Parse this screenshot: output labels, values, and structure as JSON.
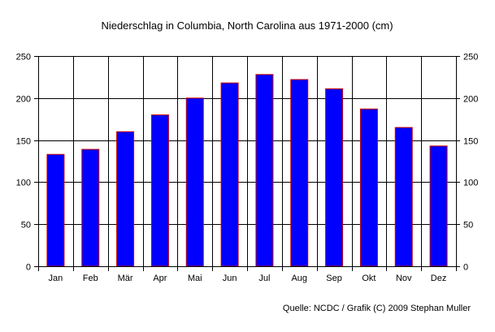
{
  "chart_data": {
    "type": "bar",
    "title": "Niederschlag in Columbia, North Carolina aus 1971-2000 (cm)",
    "categories": [
      "Jan",
      "Feb",
      "Mär",
      "Apr",
      "Mai",
      "Jun",
      "Jul",
      "Aug",
      "Sep",
      "Okt",
      "Nov",
      "Dez"
    ],
    "values": [
      133,
      139,
      160,
      180,
      200,
      218,
      228,
      222,
      211,
      187,
      165,
      143
    ],
    "ylim": [
      0,
      250
    ],
    "yticks": [
      "0",
      "50",
      "100",
      "150",
      "200",
      "250"
    ],
    "xlabel": "",
    "ylabel": "",
    "grid": true,
    "right_axis_ticks": true,
    "bar_color": "#0000ff",
    "bar_edge_color": "#cc0000",
    "source": "Quelle: NCDC / Grafik (C) 2009 Stephan Muller"
  }
}
